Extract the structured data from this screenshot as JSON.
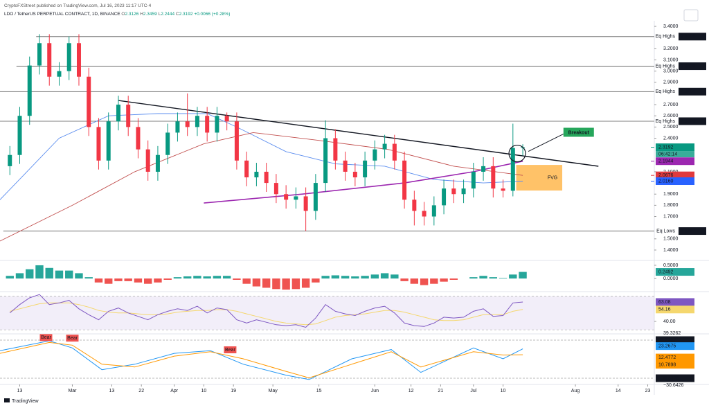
{
  "chart_data": {
    "type": "candlestick",
    "header": {
      "published": "CryptoFXStreet published on TradingView.com, Jul 16, 2023 11:17 UTC-4",
      "symbol": "LDO / TetherUS PERPETUAL CONTRACT, 1D, BINANCE",
      "ohlc": [
        {
          "label": "O",
          "value": "2.3126"
        },
        {
          "label": "H",
          "value": "2.3459"
        },
        {
          "label": "L",
          "value": "2.2444"
        },
        {
          "label": "C",
          "value": "2.3192"
        }
      ],
      "change": "+0.0066 (+0.28%)"
    },
    "footer": "TradingView",
    "x": [
      "2023-02-10",
      "2023-02-13",
      "2023-02-16",
      "2023-02-19",
      "2023-02-22",
      "2023-02-25",
      "2023-02-28",
      "2023-03-03",
      "2023-03-06",
      "2023-03-09",
      "2023-03-12",
      "2023-03-15",
      "2023-03-18",
      "2023-03-21",
      "2023-03-24",
      "2023-03-27",
      "2023-03-30",
      "2023-04-02",
      "2023-04-05",
      "2023-04-08",
      "2023-04-11",
      "2023-04-14",
      "2023-04-17",
      "2023-04-20",
      "2023-04-23",
      "2023-04-26",
      "2023-04-29",
      "2023-05-02",
      "2023-05-05",
      "2023-05-08",
      "2023-05-11",
      "2023-05-14",
      "2023-05-17",
      "2023-05-20",
      "2023-05-23",
      "2023-05-26",
      "2023-05-29",
      "2023-06-01",
      "2023-06-04",
      "2023-06-07",
      "2023-06-10",
      "2023-06-13",
      "2023-06-16",
      "2023-06-19",
      "2023-06-22",
      "2023-06-25",
      "2023-06-28",
      "2023-07-01",
      "2023-07-04",
      "2023-07-07",
      "2023-07-10",
      "2023-07-13",
      "2023-07-16"
    ],
    "open": [
      2.15,
      2.25,
      2.6,
      3.05,
      3.25,
      2.95,
      3.0,
      3.25,
      2.95,
      2.5,
      2.2,
      2.55,
      2.7,
      2.5,
      2.3,
      2.1,
      2.25,
      2.45,
      2.55,
      2.5,
      2.6,
      2.45,
      2.6,
      2.55,
      2.2,
      2.05,
      2.1,
      2.0,
      1.9,
      1.85,
      1.88,
      1.75,
      2.0,
      2.4,
      2.2,
      2.1,
      2.05,
      2.2,
      2.3,
      2.35,
      2.2,
      1.85,
      1.75,
      1.7,
      1.8,
      1.95,
      1.9,
      1.95,
      2.1,
      2.15,
      1.95,
      1.93,
      2.3126
    ],
    "high": [
      2.33,
      2.68,
      3.13,
      3.33,
      3.33,
      3.08,
      3.31,
      3.33,
      3.03,
      2.58,
      2.63,
      2.78,
      2.78,
      2.58,
      2.38,
      2.33,
      2.53,
      2.63,
      2.8,
      2.68,
      2.68,
      2.68,
      2.63,
      2.63,
      2.28,
      2.18,
      2.18,
      2.08,
      1.98,
      1.96,
      1.96,
      2.08,
      2.56,
      2.48,
      2.28,
      2.18,
      2.28,
      2.38,
      2.43,
      2.43,
      2.28,
      1.93,
      1.83,
      1.88,
      2.03,
      2.03,
      2.03,
      2.18,
      2.23,
      2.23,
      2.03,
      2.53,
      2.3459
    ],
    "low": [
      2.07,
      2.17,
      2.52,
      2.97,
      2.87,
      2.87,
      2.92,
      2.87,
      2.42,
      2.12,
      2.12,
      2.47,
      2.42,
      2.22,
      2.02,
      2.02,
      2.17,
      2.37,
      2.42,
      2.42,
      2.37,
      2.37,
      2.47,
      2.12,
      1.97,
      1.97,
      1.92,
      1.82,
      1.77,
      1.77,
      1.57,
      1.67,
      1.92,
      2.12,
      2.02,
      1.97,
      1.97,
      2.12,
      2.22,
      2.12,
      1.77,
      1.62,
      1.62,
      1.62,
      1.72,
      1.82,
      1.82,
      1.87,
      2.02,
      1.87,
      1.87,
      1.88,
      2.2444
    ],
    "close": [
      2.25,
      2.6,
      3.05,
      3.25,
      2.95,
      3.0,
      3.25,
      2.95,
      2.5,
      2.2,
      2.55,
      2.7,
      2.5,
      2.3,
      2.1,
      2.25,
      2.45,
      2.55,
      2.5,
      2.6,
      2.45,
      2.6,
      2.55,
      2.2,
      2.05,
      2.1,
      2.0,
      1.9,
      1.85,
      1.88,
      1.75,
      2.0,
      2.4,
      2.2,
      2.1,
      2.05,
      2.2,
      2.3,
      2.35,
      2.2,
      1.85,
      1.75,
      1.7,
      1.8,
      1.95,
      1.9,
      1.95,
      2.1,
      2.15,
      1.95,
      1.93,
      2.3126,
      2.3192
    ],
    "up_color": "#089981",
    "down_color": "#f23645",
    "xlim": [
      "2023-02-07",
      "2023-08-25"
    ],
    "xticks": [
      {
        "value": "2023-02-13",
        "label": "13"
      },
      {
        "value": "2023-03-01",
        "label": "Mar"
      },
      {
        "value": "2023-03-13",
        "label": "13"
      },
      {
        "value": "2023-03-22",
        "label": "22"
      },
      {
        "value": "2023-04-01",
        "label": "Apr"
      },
      {
        "value": "2023-04-10",
        "label": "10"
      },
      {
        "value": "2023-04-19",
        "label": "19"
      },
      {
        "value": "2023-05-01",
        "label": "May"
      },
      {
        "value": "2023-05-15",
        "label": "15"
      },
      {
        "value": "2023-06-01",
        "label": "Jun"
      },
      {
        "value": "2023-06-12",
        "label": "12"
      },
      {
        "value": "2023-06-21",
        "label": "21"
      },
      {
        "value": "2023-07-01",
        "label": "Jul"
      },
      {
        "value": "2023-07-10",
        "label": "10"
      },
      {
        "value": "2023-08-01",
        "label": "Aug"
      },
      {
        "value": "2023-08-14",
        "label": "14"
      },
      {
        "value": "2023-08-23",
        "label": "23"
      }
    ],
    "ylim": [
      1.313,
      3.45
    ],
    "yticks": [
      {
        "value": 3.4,
        "label": "3.4000"
      },
      {
        "value": 3.2,
        "label": "3.2000"
      },
      {
        "value": 3.1,
        "label": "3.1000"
      },
      {
        "value": 3.0,
        "label": "3.0000"
      },
      {
        "value": 2.9,
        "label": "2.9000"
      },
      {
        "value": 2.7,
        "label": "2.7000"
      },
      {
        "value": 2.6,
        "label": "2.6000"
      },
      {
        "value": 2.5,
        "label": "2.5000"
      },
      {
        "value": 2.4,
        "label": "2.4000"
      },
      {
        "value": 2.1,
        "label": "2.1000"
      },
      {
        "value": 1.9,
        "label": "1.9000"
      },
      {
        "value": 1.8,
        "label": "1.8000"
      },
      {
        "value": 1.7,
        "label": "1.7000"
      },
      {
        "value": 1.5,
        "label": "1.5000"
      },
      {
        "value": 1.4,
        "label": "1.4000"
      }
    ],
    "levels": [
      {
        "name": "Eq Highs",
        "value": 3.3086,
        "label": "3.3086",
        "from": "2023-02-18"
      },
      {
        "name": "Eq Highs",
        "value": 3.0439,
        "label": "3.0439",
        "from": "2023-02-12"
      },
      {
        "name": "Eq Highs",
        "value": 2.8164,
        "label": "2.8164",
        "from": "2023-02-07"
      },
      {
        "name": "Eq Highs",
        "value": 2.552,
        "label": "2.5520",
        "from": "2023-02-07"
      },
      {
        "name": "Eq Lows",
        "value": 1.5697,
        "label": "1.5697",
        "from": "2023-02-08"
      }
    ],
    "badges": [
      {
        "value": 2.3192,
        "label": "2.3192",
        "color": "#089981",
        "countdown": "06:42:14"
      },
      {
        "value": 2.1944,
        "label": "2.1944",
        "color": "#9c27b0"
      },
      {
        "value": 2.0676,
        "label": "2.0676",
        "color": "#e03a3e"
      },
      {
        "value": 2.016,
        "label": "2.0160",
        "color": "#2962ff"
      }
    ],
    "overlays": [
      {
        "color": "#5b8def",
        "x": [
          "2023-02-07",
          "2023-02-25",
          "2023-03-12",
          "2023-03-27",
          "2023-04-11",
          "2023-04-20",
          "2023-05-05",
          "2023-05-20",
          "2023-06-04",
          "2023-06-19",
          "2023-07-04",
          "2023-07-16"
        ],
        "values": [
          1.85,
          2.4,
          2.6,
          2.62,
          2.62,
          2.5,
          2.28,
          2.17,
          2.15,
          2.03,
          2.0,
          2.016
        ]
      },
      {
        "color": "#c2504f",
        "x": [
          "2023-02-07",
          "2023-03-01",
          "2023-03-20",
          "2023-04-10",
          "2023-04-25",
          "2023-05-15",
          "2023-06-05",
          "2023-06-25",
          "2023-07-16"
        ],
        "values": [
          1.48,
          1.8,
          2.1,
          2.35,
          2.45,
          2.38,
          2.3,
          2.15,
          2.0676
        ]
      },
      {
        "color": "#9c27b0",
        "x": [
          "2023-04-10",
          "2023-05-10",
          "2023-06-10",
          "2023-07-01",
          "2023-07-16"
        ],
        "values": [
          1.82,
          1.9,
          2.0,
          2.1,
          2.1944
        ]
      }
    ],
    "trendline": {
      "x": [
        "2023-03-15",
        "2023-08-08"
      ],
      "values": [
        2.737,
        2.149
      ]
    },
    "fvg": {
      "label": "FVG",
      "x": [
        "2023-07-14",
        "2023-07-28"
      ],
      "values": [
        2.161,
        1.932
      ]
    },
    "breakout": {
      "label": "Breakout",
      "x": "2023-08-02",
      "value": 2.45
    },
    "macd": {
      "ylim": [
        -0.47,
        0.63
      ],
      "yticks": [
        {
          "value": 0.5,
          "label": "0.5000"
        },
        {
          "value": 0,
          "label": "0.0000"
        }
      ],
      "values": [
        0.1,
        0.2,
        0.35,
        0.5,
        0.4,
        0.3,
        0.3,
        0.2,
        0.05,
        -0.15,
        -0.2,
        -0.1,
        -0.1,
        -0.15,
        -0.2,
        -0.15,
        -0.05,
        0.05,
        0.08,
        0.1,
        0.08,
        0.1,
        0.1,
        -0.05,
        -0.2,
        -0.3,
        -0.35,
        -0.4,
        -0.42,
        -0.4,
        -0.35,
        -0.15,
        0.1,
        0.12,
        0.1,
        0.08,
        0.1,
        0.15,
        0.2,
        0.15,
        -0.1,
        -0.2,
        -0.25,
        -0.2,
        -0.12,
        -0.05,
        0.0,
        0.05,
        0.1,
        0.05,
        0.02,
        0.15,
        0.2492
      ],
      "current_label": "0.2492"
    },
    "rsi": {
      "ylim": [
        26.8,
        74.6
      ],
      "band": [
        30,
        70
      ],
      "yticks": [
        {
          "value": 40,
          "label": "40.00"
        }
      ],
      "values": [
        50,
        60,
        68,
        72,
        60,
        62,
        65,
        55,
        48,
        42,
        52,
        56,
        50,
        46,
        42,
        48,
        52,
        55,
        53,
        58,
        50,
        56,
        54,
        42,
        38,
        42,
        39,
        36,
        35,
        36,
        33,
        44,
        60,
        52,
        49,
        47,
        52,
        56,
        58,
        50,
        38,
        35,
        34,
        38,
        45,
        44,
        45,
        52,
        55,
        46,
        47,
        62,
        63.08
      ],
      "current_label": "63.08",
      "ma": [
        52,
        55,
        58,
        61,
        62,
        62,
        62,
        60,
        57,
        53,
        51,
        50,
        50,
        49,
        48,
        48,
        49,
        51,
        52,
        53,
        53,
        54,
        54,
        52,
        49,
        46,
        43,
        40,
        38,
        37,
        36,
        37,
        41,
        45,
        47,
        48,
        49,
        51,
        53,
        53,
        51,
        48,
        45,
        42,
        41,
        41,
        42,
        45,
        48,
        48,
        48,
        52,
        54.16
      ],
      "ma_label": "54.16"
    },
    "wave": {
      "ylim": [
        -39.55,
        48.23
      ],
      "yticks": [
        {
          "value": 39.3262,
          "label": "39.3262"
        },
        {
          "value": -30.6426,
          "label": "−30.6426"
        }
      ],
      "x": [
        "2023-02-07",
        "2023-02-22",
        "2023-03-01",
        "2023-03-10",
        "2023-03-20",
        "2023-04-01",
        "2023-04-12",
        "2023-04-22",
        "2023-05-05",
        "2023-05-12",
        "2023-05-25",
        "2023-06-06",
        "2023-06-15",
        "2023-07-01",
        "2023-07-10",
        "2023-07-16"
      ],
      "series": [
        {
          "color": "#2196f3",
          "values": [
            20,
            38,
            25,
            -15,
            -5,
            15,
            20,
            -5,
            -25,
            -33,
            5,
            22,
            -20,
            25,
            5,
            23.2675
          ],
          "label": "23.2675"
        },
        {
          "color": "#ff9800",
          "values": [
            15,
            35,
            30,
            -5,
            -10,
            10,
            18,
            5,
            -18,
            -30,
            -5,
            18,
            -10,
            18,
            12,
            12.4772
          ],
          "label": "12.4772"
        }
      ],
      "extra_label": "10.7898",
      "signals": [
        {
          "text": "Bear",
          "x": "2023-02-21",
          "value": 44
        },
        {
          "text": "Bear",
          "x": "2023-03-01",
          "value": 43
        },
        {
          "text": "Bear",
          "x": "2023-04-18",
          "value": 21.5
        }
      ]
    }
  }
}
